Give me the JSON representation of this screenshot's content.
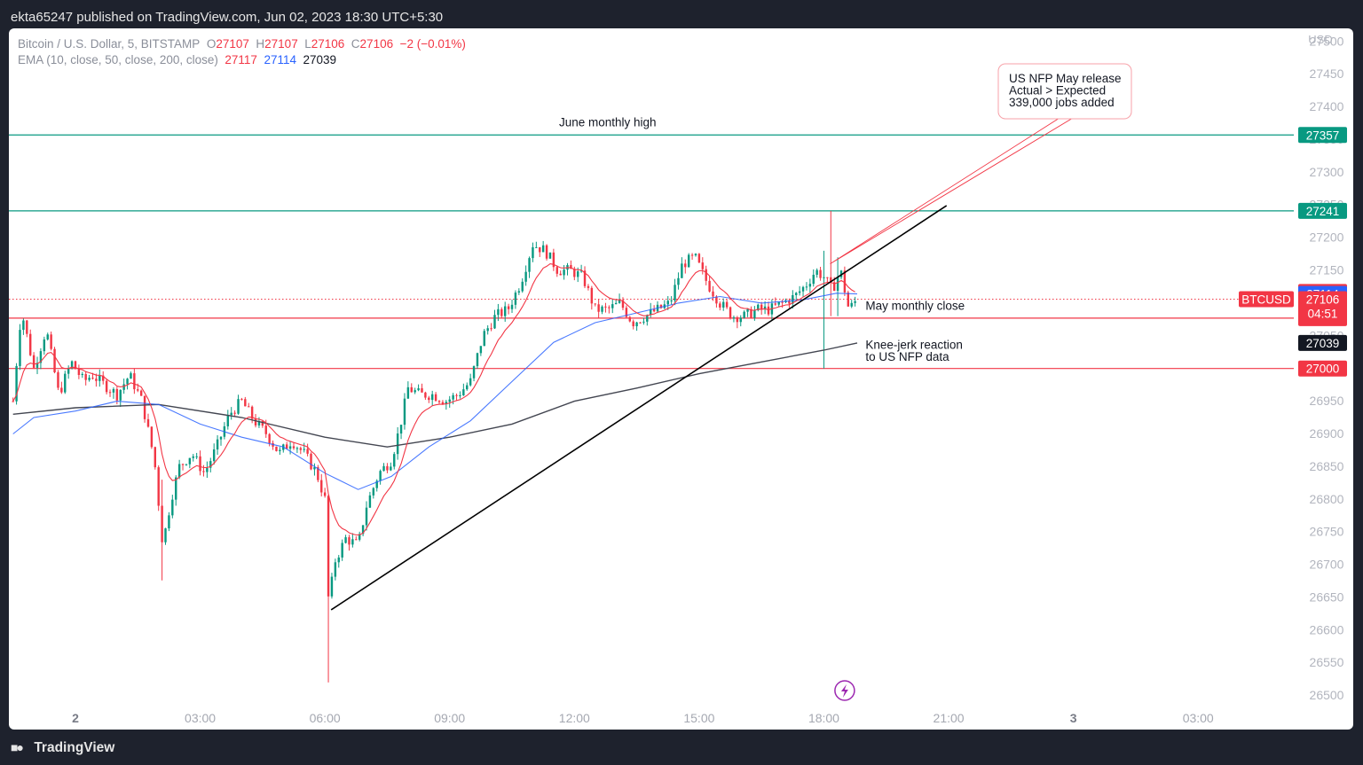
{
  "header": {
    "published": "ekta65247 published on TradingView.com, Jun 02, 2023 18:30 UTC+5:30"
  },
  "legend": {
    "symbol": "Bitcoin / U.S. Dollar, 5, BITSTAMP",
    "o_label": "O",
    "o": "27107",
    "h_label": "H",
    "h": "27107",
    "l_label": "L",
    "l": "27106",
    "c_label": "C",
    "c": "27106",
    "change": "−2 (−0.01%)",
    "ema_label": "EMA (10, close, 50, close, 200, close)",
    "ema10": "27117",
    "ema50": "27114",
    "ema200": "27039"
  },
  "footer": {
    "brand": "TradingView",
    "brand_icon": "tradingview-logo-icon"
  },
  "colors": {
    "up": "#089981",
    "down": "#f23645",
    "ema10": "#f23645",
    "ema50": "#2962ff",
    "ema200": "#434651",
    "level": "#089981"
  },
  "chart_data": {
    "type": "candlestick",
    "symbol": "BTCUSD",
    "currency": "USD",
    "y_ticks": [
      26500,
      26550,
      26600,
      26650,
      26700,
      26750,
      26800,
      26850,
      26900,
      26950,
      27000,
      27050,
      27100,
      27150,
      27200,
      27250,
      27300,
      27350,
      27400,
      27450,
      27500
    ],
    "x_ticks": [
      {
        "label": "2",
        "hour": 0,
        "bold": true
      },
      {
        "label": "03:00",
        "hour": 3
      },
      {
        "label": "06:00",
        "hour": 6
      },
      {
        "label": "09:00",
        "hour": 9
      },
      {
        "label": "12:00",
        "hour": 12
      },
      {
        "label": "15:00",
        "hour": 15
      },
      {
        "label": "18:00",
        "hour": 18
      },
      {
        "label": "21:00",
        "hour": 21
      },
      {
        "label": "3",
        "hour": 24,
        "bold": true
      },
      {
        "label": "03:00",
        "hour": 27
      }
    ],
    "ylim": [
      26490,
      27520
    ],
    "xlim_hours": [
      -1.6,
      29.3
    ],
    "price_points": [
      [
        -1.5,
        26950
      ],
      [
        -1.3,
        27090
      ],
      [
        -1.0,
        27000
      ],
      [
        -0.7,
        27060
      ],
      [
        -0.4,
        26960
      ],
      [
        -0.1,
        27010
      ],
      [
        0.2,
        26980
      ],
      [
        0.4,
        26990
      ],
      [
        0.7,
        26975
      ],
      [
        1.0,
        26960
      ],
      [
        1.3,
        26990
      ],
      [
        1.6,
        26950
      ],
      [
        1.9,
        26860
      ],
      [
        2.1,
        26730
      ],
      [
        2.3,
        26800
      ],
      [
        2.5,
        26850
      ],
      [
        2.8,
        26870
      ],
      [
        3.1,
        26840
      ],
      [
        3.4,
        26880
      ],
      [
        3.7,
        26930
      ],
      [
        4.0,
        26950
      ],
      [
        4.3,
        26920
      ],
      [
        4.6,
        26900
      ],
      [
        4.9,
        26870
      ],
      [
        5.2,
        26890
      ],
      [
        5.5,
        26870
      ],
      [
        5.8,
        26840
      ],
      [
        6.0,
        26800
      ],
      [
        6.1,
        26620
      ],
      [
        6.2,
        26700
      ],
      [
        6.5,
        26740
      ],
      [
        6.8,
        26730
      ],
      [
        7.0,
        26790
      ],
      [
        7.3,
        26840
      ],
      [
        7.6,
        26860
      ],
      [
        7.8,
        26910
      ],
      [
        8.0,
        26970
      ],
      [
        8.3,
        26960
      ],
      [
        8.6,
        26960
      ],
      [
        8.9,
        26950
      ],
      [
        9.2,
        26960
      ],
      [
        9.5,
        26980
      ],
      [
        9.8,
        27050
      ],
      [
        10.1,
        27080
      ],
      [
        10.4,
        27090
      ],
      [
        10.7,
        27130
      ],
      [
        11.0,
        27190
      ],
      [
        11.3,
        27180
      ],
      [
        11.6,
        27150
      ],
      [
        11.9,
        27150
      ],
      [
        12.2,
        27140
      ],
      [
        12.5,
        27090
      ],
      [
        12.8,
        27090
      ],
      [
        13.1,
        27100
      ],
      [
        13.4,
        27070
      ],
      [
        13.7,
        27080
      ],
      [
        14.0,
        27090
      ],
      [
        14.3,
        27100
      ],
      [
        14.6,
        27160
      ],
      [
        14.9,
        27170
      ],
      [
        15.2,
        27130
      ],
      [
        15.5,
        27100
      ],
      [
        15.8,
        27080
      ],
      [
        16.1,
        27080
      ],
      [
        16.4,
        27090
      ],
      [
        16.7,
        27090
      ],
      [
        17.0,
        27100
      ],
      [
        17.3,
        27110
      ],
      [
        17.6,
        27130
      ],
      [
        17.8,
        27150
      ],
      [
        18.0,
        27140
      ],
      [
        18.2,
        27120
      ],
      [
        18.4,
        27150
      ],
      [
        18.6,
        27090
      ],
      [
        18.8,
        27106
      ]
    ],
    "spikes": [
      {
        "hour": 2.1,
        "low": 26676,
        "high": 26830
      },
      {
        "hour": 6.1,
        "low": 26520,
        "high": 26760
      },
      {
        "hour": 18.0,
        "low": 27000,
        "high": 27180
      },
      {
        "hour": 18.15,
        "low": 27080,
        "high": 27241
      },
      {
        "hour": 18.35,
        "low": 27080,
        "high": 27170
      }
    ],
    "ema200_points": [
      [
        -1.5,
        26930
      ],
      [
        0,
        26940
      ],
      [
        2,
        26945
      ],
      [
        4,
        26925
      ],
      [
        6,
        26895
      ],
      [
        7.5,
        26880
      ],
      [
        9,
        26895
      ],
      [
        10.5,
        26915
      ],
      [
        12,
        26950
      ],
      [
        13.5,
        26970
      ],
      [
        15,
        26992
      ],
      [
        16.5,
        27010
      ],
      [
        18,
        27028
      ],
      [
        18.8,
        27039
      ]
    ],
    "ema50_points": [
      [
        -1.5,
        26900
      ],
      [
        -1,
        26925
      ],
      [
        0,
        26935
      ],
      [
        1,
        26950
      ],
      [
        2,
        26945
      ],
      [
        3,
        26915
      ],
      [
        4,
        26895
      ],
      [
        5,
        26880
      ],
      [
        6,
        26840
      ],
      [
        6.8,
        26815
      ],
      [
        7.6,
        26835
      ],
      [
        8.5,
        26880
      ],
      [
        9.5,
        26920
      ],
      [
        10.5,
        26980
      ],
      [
        11.5,
        27040
      ],
      [
        12.5,
        27070
      ],
      [
        13.5,
        27085
      ],
      [
        14.5,
        27100
      ],
      [
        15.5,
        27110
      ],
      [
        16.5,
        27100
      ],
      [
        17.5,
        27105
      ],
      [
        18.3,
        27115
      ],
      [
        18.8,
        27114
      ]
    ],
    "levels": [
      {
        "price": 27357,
        "label": "27357",
        "color": "#089981",
        "note": "June monthly high"
      },
      {
        "price": 27241,
        "label": "27241",
        "color": "#089981"
      },
      {
        "price": 27077,
        "label": "27077",
        "color": "#f23645",
        "note": "May monthly close"
      },
      {
        "price": 27000,
        "label": "27000",
        "color": "#f23645"
      }
    ],
    "price_labels": [
      {
        "price": 27117,
        "label": "27117",
        "bg": "#f23645"
      },
      {
        "price": 27114,
        "label": "27114",
        "bg": "#2962ff"
      },
      {
        "price": 27106,
        "label": "27106",
        "sub": "04:51",
        "bg": "#f23645"
      },
      {
        "price": 27039,
        "label": "27039",
        "bg": "#131722"
      }
    ],
    "last_price": 27106,
    "symbol_tag": "BTCUSD",
    "trendline": {
      "from": [
        6.15,
        26631
      ],
      "to": [
        20.95,
        27249
      ]
    },
    "callout": {
      "lines": [
        "US NFP May release",
        "Actual > Expected",
        "339,000 jobs added"
      ],
      "anchor": [
        18.15,
        27160
      ]
    },
    "annotations": [
      {
        "text": "June monthly high",
        "hour": 12.8,
        "price": 27370,
        "align": "middle"
      },
      {
        "text": "May monthly close",
        "hour": 19.0,
        "price": 27090,
        "align": "start"
      },
      {
        "text": "Knee-jerk reaction",
        "hour": 19.0,
        "price": 27030,
        "align": "start"
      },
      {
        "text": "to US NFP data",
        "hour": 19.0,
        "price": 27012,
        "align": "start"
      }
    ]
  }
}
